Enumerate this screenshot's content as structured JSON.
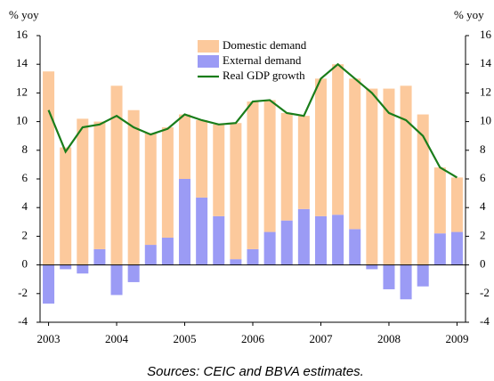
{
  "chart_data": {
    "type": "bar",
    "y_label": "% yoy",
    "y2_label": "% yoy",
    "source": "Sources: CEIC and BBVA estimates.",
    "categories": [
      "2003",
      null,
      null,
      null,
      "2004",
      null,
      null,
      null,
      "2005",
      null,
      null,
      null,
      "2006",
      null,
      null,
      null,
      "2007",
      null,
      null,
      null,
      "2008",
      null,
      null,
      null,
      "2009"
    ],
    "series": [
      {
        "name": "Domestic demand",
        "type": "bar",
        "color": "#fcc99c",
        "values": [
          13.5,
          8.2,
          10.2,
          8.9,
          12.5,
          10.8,
          7.8,
          7.7,
          4.5,
          5.4,
          6.4,
          9.5,
          10.3,
          9.2,
          7.5,
          6.5,
          9.6,
          10.5,
          10.5,
          12.3,
          12.3,
          12.5,
          10.5,
          4.6,
          3.8
        ]
      },
      {
        "name": "External demand",
        "type": "bar",
        "color": "#9b9bf5",
        "values": [
          -2.7,
          -0.3,
          -0.6,
          1.1,
          -2.1,
          -1.2,
          1.4,
          1.9,
          6.0,
          4.7,
          3.4,
          0.4,
          1.1,
          2.3,
          3.1,
          3.9,
          3.4,
          3.5,
          2.5,
          -0.3,
          -1.7,
          -2.4,
          -1.5,
          2.2,
          2.3
        ]
      },
      {
        "name": "Real GDP growth",
        "type": "line",
        "color": "#1a7d1a",
        "values": [
          10.8,
          7.9,
          9.6,
          9.8,
          10.4,
          9.6,
          9.1,
          9.5,
          10.5,
          10.1,
          9.8,
          9.9,
          11.4,
          11.5,
          10.6,
          10.4,
          13.0,
          14.0,
          13.0,
          12.0,
          10.6,
          10.1,
          9.0,
          6.8,
          6.1
        ]
      }
    ],
    "stacked": true,
    "ylim": [
      -4,
      16
    ],
    "yticks": [
      -4,
      -2,
      0,
      2,
      4,
      6,
      8,
      10,
      12,
      14,
      16
    ],
    "y2lim": [
      -4,
      16
    ],
    "y2ticks": [
      -4,
      -2,
      0,
      2,
      4,
      6,
      8,
      10,
      12,
      14,
      16
    ],
    "legend": "top"
  }
}
